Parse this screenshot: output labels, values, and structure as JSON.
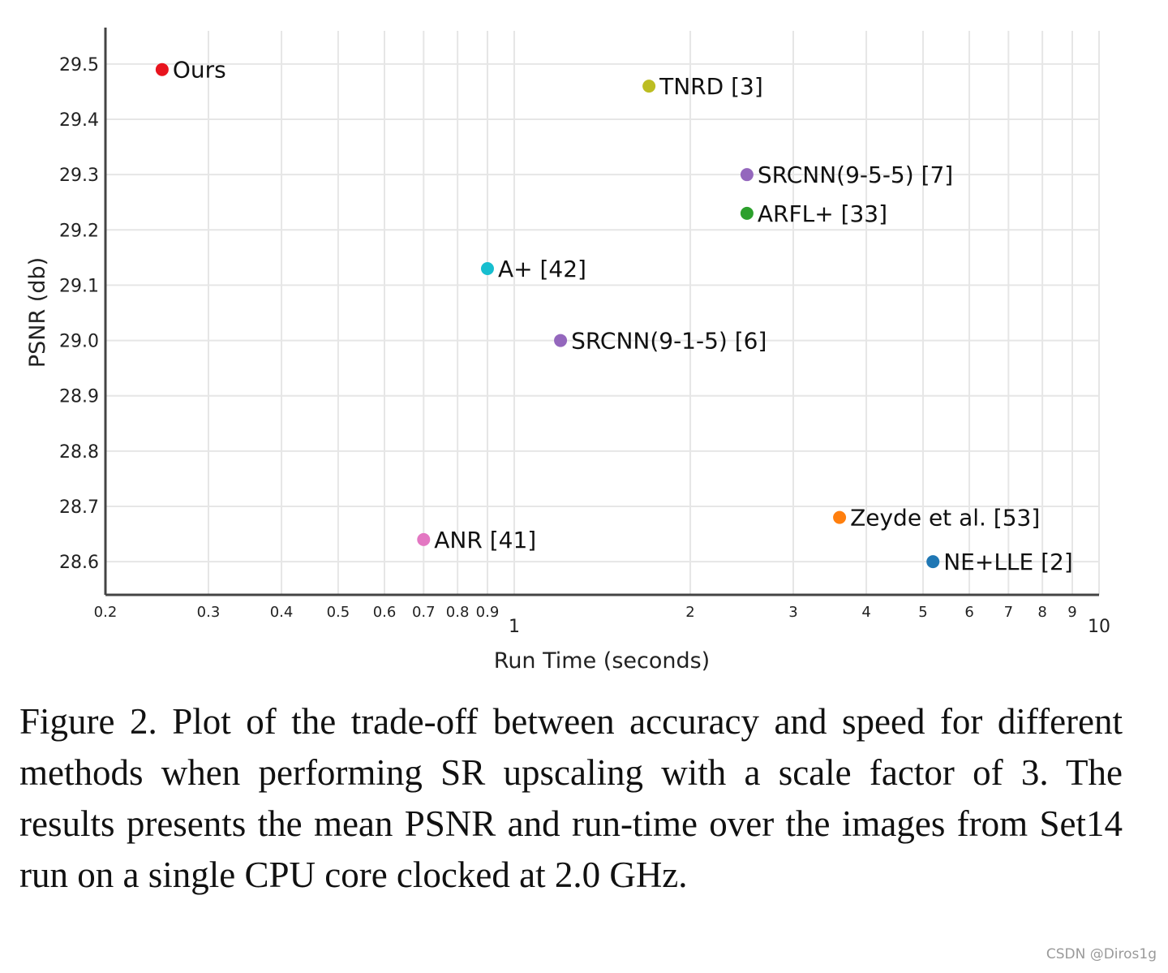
{
  "chart_data": {
    "type": "scatter",
    "xlabel": "Run Time (seconds)",
    "ylabel": "PSNR (db)",
    "x_scale": "log",
    "xlim": [
      0.2,
      10
    ],
    "ylim": [
      28.54,
      29.56
    ],
    "grid": true,
    "x_ticks": [
      "0.2",
      "0.3",
      "0.4",
      "0.5",
      "0.6",
      "0.7",
      "0.8",
      "0.9",
      "1",
      "2",
      "3",
      "4",
      "5",
      "6",
      "7",
      "8",
      "9",
      "10"
    ],
    "x_tick_values": [
      0.2,
      0.3,
      0.4,
      0.5,
      0.6,
      0.7,
      0.8,
      0.9,
      1,
      2,
      3,
      4,
      5,
      6,
      7,
      8,
      9,
      10
    ],
    "y_ticks": [
      "28.6",
      "28.7",
      "28.8",
      "28.9",
      "29.0",
      "29.1",
      "29.2",
      "29.3",
      "29.4",
      "29.5"
    ],
    "y_tick_values": [
      28.6,
      28.7,
      28.8,
      28.9,
      29.0,
      29.1,
      29.2,
      29.3,
      29.4,
      29.5
    ],
    "points": [
      {
        "label": "Ours",
        "x": 0.25,
        "y": 29.49,
        "color": "#e8141e"
      },
      {
        "label": "TNRD [3]",
        "x": 1.7,
        "y": 29.46,
        "color": "#bcbd22"
      },
      {
        "label": "SRCNN(9-5-5) [7]",
        "x": 2.5,
        "y": 29.3,
        "color": "#9467bd"
      },
      {
        "label": "ARFL+ [33]",
        "x": 2.5,
        "y": 29.23,
        "color": "#2ca02c"
      },
      {
        "label": "A+ [42]",
        "x": 0.9,
        "y": 29.13,
        "color": "#17becf"
      },
      {
        "label": "SRCNN(9-1-5) [6]",
        "x": 1.2,
        "y": 29.0,
        "color": "#9467bd"
      },
      {
        "label": "Zeyde et al. [53]",
        "x": 3.6,
        "y": 28.68,
        "color": "#ff7f0e"
      },
      {
        "label": "ANR [41]",
        "x": 0.7,
        "y": 28.64,
        "color": "#e377c2"
      },
      {
        "label": "NE+LLE [2]",
        "x": 5.2,
        "y": 28.6,
        "color": "#1f77b4"
      }
    ]
  },
  "caption": "Figure 2. Plot of the trade-off between accuracy and speed for different methods when performing SR upscaling with a scale factor of 3.  The results presents the mean PSNR and run-time over the images from Set14 run on a single CPU core clocked at 2.0 GHz.",
  "watermark": "CSDN @Diros1g"
}
